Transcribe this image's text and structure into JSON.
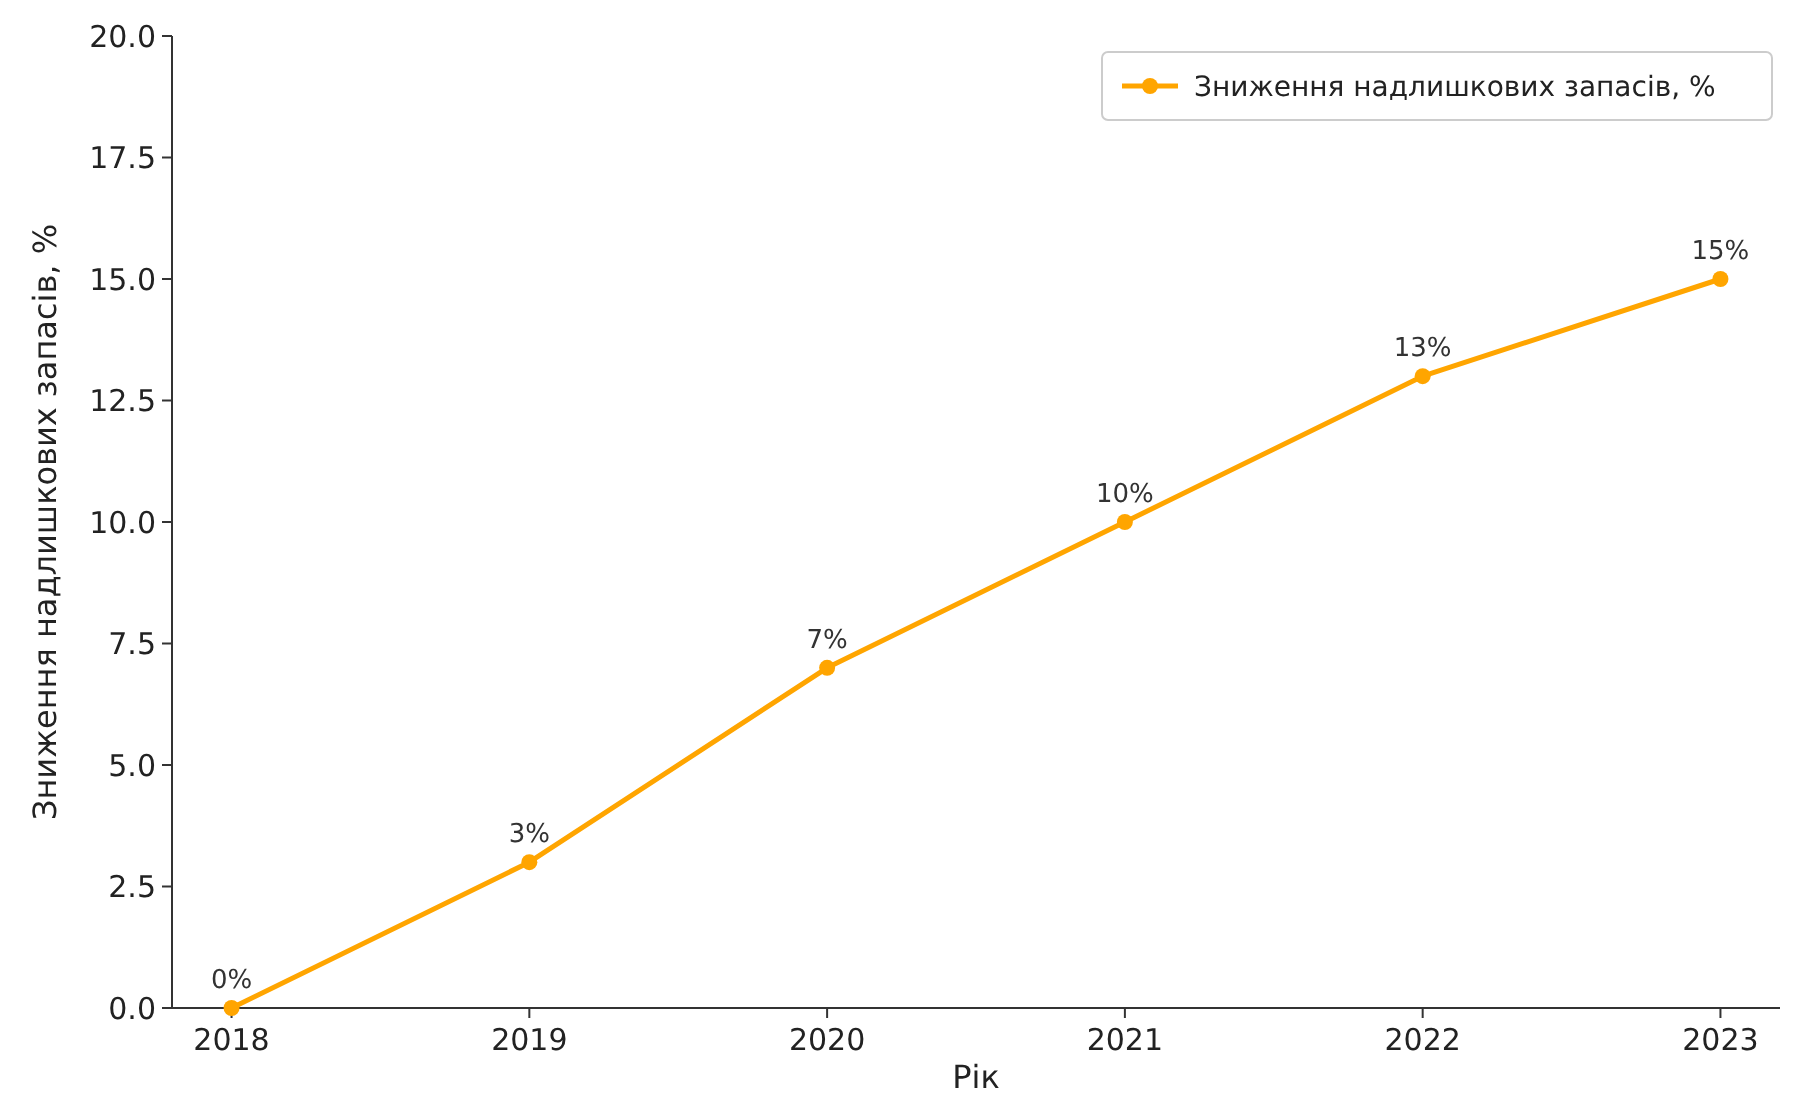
{
  "chart_data": {
    "type": "line",
    "xlabel": "Рік",
    "ylabel": "Зниження надлишкових запасів, %",
    "x": [
      2018,
      2019,
      2020,
      2021,
      2022,
      2023
    ],
    "series": [
      {
        "name": "Зниження надлишкових запасів, %",
        "color": "#ffa500",
        "values": [
          0,
          3,
          7,
          10,
          13,
          15
        ],
        "value_labels": [
          "0%",
          "3%",
          "7%",
          "10%",
          "13%",
          "15%"
        ]
      }
    ],
    "xlim": [
      2017.8,
      2023.2
    ],
    "xticks": [
      2018,
      2019,
      2020,
      2021,
      2022,
      2023
    ],
    "ylim": [
      0,
      20
    ],
    "yticks": [
      {
        "value": 0,
        "label": "0.0"
      },
      {
        "value": 2.5,
        "label": "2.5"
      },
      {
        "value": 5,
        "label": "5.0"
      },
      {
        "value": 7.5,
        "label": "7.5"
      },
      {
        "value": 10,
        "label": "10.0"
      },
      {
        "value": 12.5,
        "label": "12.5"
      },
      {
        "value": 15,
        "label": "15.0"
      },
      {
        "value": 17.5,
        "label": "17.5"
      },
      {
        "value": 20,
        "label": "20.0"
      }
    ],
    "grid": false,
    "legend": "top right",
    "marker": "circle",
    "line_style": "solid"
  }
}
